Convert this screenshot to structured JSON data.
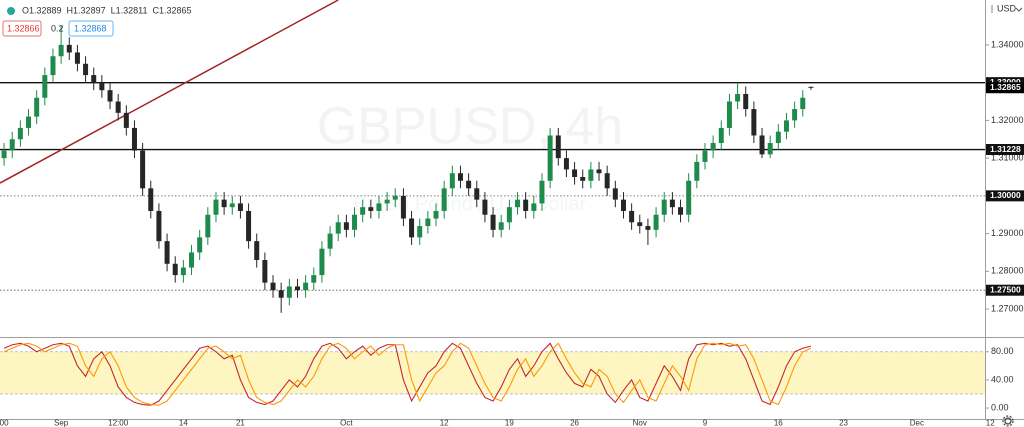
{
  "chart_data": [
    {
      "type": "candlestick",
      "watermark": "GBPUSD, 4h",
      "watermark_sub": "British Pound / U.S. Dollar",
      "currency": "USD",
      "ohlc_labels": [
        "O1.32889",
        "H1.32897",
        "L1.32811",
        "C1.32865"
      ],
      "bid": "1.32866",
      "spread": "0.2",
      "ask": "1.32868",
      "up_color": "#1e8a4c",
      "down_color": "#262626",
      "categories": [
        "00",
        null,
        null,
        null,
        null,
        null,
        null,
        "Sep",
        null,
        null,
        null,
        null,
        null,
        null,
        "12:00",
        null,
        null,
        null,
        null,
        null,
        null,
        null,
        "14",
        null,
        null,
        null,
        null,
        null,
        null,
        "21",
        null,
        null,
        null,
        null,
        null,
        null,
        null,
        null,
        null,
        null,
        null,
        null,
        "Oct",
        null,
        null,
        null,
        null,
        null,
        null,
        null,
        null,
        null,
        null,
        null,
        "12",
        null,
        null,
        null,
        null,
        null,
        null,
        null,
        "19",
        null,
        null,
        null,
        null,
        null,
        null,
        null,
        "26",
        null,
        null,
        null,
        null,
        null,
        null,
        null,
        "Nov",
        null,
        null,
        null,
        null,
        null,
        null,
        null,
        "9",
        null,
        null,
        null,
        null,
        null,
        null,
        null,
        null,
        "16",
        null,
        null,
        null,
        null,
        null,
        null,
        null,
        "23",
        null,
        null,
        null,
        null,
        null,
        null,
        null,
        null,
        "Dec",
        null,
        null,
        null,
        null,
        null,
        null,
        null,
        null,
        "12"
      ],
      "open": [
        1.31,
        1.312,
        1.315,
        1.318,
        1.321,
        1.326,
        1.332,
        1.337,
        1.34,
        1.338,
        1.335,
        1.332,
        1.33,
        1.328,
        1.325,
        1.322,
        1.318,
        1.312,
        1.302,
        1.296,
        1.288,
        1.282,
        1.279,
        1.281,
        1.285,
        1.289,
        1.295,
        1.299,
        1.297,
        1.298,
        1.296,
        1.288,
        1.283,
        1.277,
        1.275,
        1.273,
        1.276,
        1.275,
        1.277,
        1.279,
        1.286,
        1.29,
        1.293,
        1.291,
        1.295,
        1.297,
        1.296,
        1.298,
        1.299,
        1.3,
        1.294,
        1.289,
        1.292,
        1.294,
        1.296,
        1.302,
        1.306,
        1.304,
        1.302,
        1.299,
        1.295,
        1.291,
        1.293,
        1.297,
        1.299,
        1.296,
        1.298,
        1.304,
        1.316,
        1.31,
        1.307,
        1.305,
        1.304,
        1.307,
        1.306,
        1.302,
        1.299,
        1.296,
        1.293,
        1.292,
        1.291,
        1.295,
        1.299,
        1.297,
        1.295,
        1.304,
        1.309,
        1.312,
        1.314,
        1.318,
        1.325,
        1.327,
        1.323,
        1.316,
        1.311,
        1.314,
        1.317,
        1.32,
        1.323,
        1.32889,
        null,
        null,
        null,
        null,
        null,
        null,
        null,
        null,
        null,
        null,
        null,
        null,
        null,
        null,
        null,
        null,
        null,
        null,
        null,
        null,
        null,
        null
      ],
      "high": [
        1.314,
        1.317,
        1.32,
        1.323,
        1.328,
        1.334,
        1.339,
        1.345,
        1.342,
        1.34,
        1.337,
        1.334,
        1.332,
        1.33,
        1.327,
        1.324,
        1.32,
        1.314,
        1.304,
        1.298,
        1.29,
        1.284,
        1.283,
        1.287,
        1.291,
        1.297,
        1.301,
        1.301,
        1.3,
        1.3,
        1.298,
        1.29,
        1.285,
        1.279,
        1.277,
        1.278,
        1.278,
        1.279,
        1.281,
        1.288,
        1.292,
        1.295,
        1.295,
        1.297,
        1.299,
        1.299,
        1.3,
        1.301,
        1.302,
        1.302,
        1.296,
        1.294,
        1.296,
        1.298,
        1.304,
        1.308,
        1.308,
        1.306,
        1.304,
        1.301,
        1.297,
        1.295,
        1.299,
        1.301,
        1.301,
        1.3,
        1.306,
        1.318,
        1.318,
        1.312,
        1.309,
        1.307,
        1.309,
        1.309,
        1.308,
        1.304,
        1.301,
        1.298,
        1.295,
        1.294,
        1.297,
        1.301,
        1.301,
        1.299,
        1.306,
        1.311,
        1.314,
        1.316,
        1.32,
        1.327,
        1.33,
        1.329,
        1.325,
        1.318,
        1.316,
        1.319,
        1.322,
        1.325,
        1.328,
        1.32897,
        null,
        null,
        null,
        null,
        null,
        null,
        null,
        null,
        null,
        null,
        null,
        null,
        null,
        null,
        null,
        null,
        null,
        null,
        null,
        null,
        null,
        null
      ],
      "low": [
        1.308,
        1.31,
        1.313,
        1.316,
        1.319,
        1.324,
        1.33,
        1.335,
        1.336,
        1.333,
        1.33,
        1.328,
        1.326,
        1.323,
        1.32,
        1.316,
        1.31,
        1.3,
        1.294,
        1.286,
        1.28,
        1.277,
        1.277,
        1.279,
        1.283,
        1.287,
        1.293,
        1.295,
        1.295,
        1.294,
        1.286,
        1.281,
        1.275,
        1.273,
        1.269,
        1.271,
        1.273,
        1.273,
        1.275,
        1.277,
        1.284,
        1.288,
        1.289,
        1.289,
        1.293,
        1.294,
        1.294,
        1.296,
        1.297,
        1.292,
        1.287,
        1.287,
        1.29,
        1.292,
        1.294,
        1.3,
        1.302,
        1.3,
        1.297,
        1.293,
        1.289,
        1.289,
        1.291,
        1.295,
        1.294,
        1.294,
        1.296,
        1.302,
        1.308,
        1.305,
        1.303,
        1.302,
        1.302,
        1.304,
        1.3,
        1.297,
        1.294,
        1.291,
        1.29,
        1.287,
        1.289,
        1.293,
        1.295,
        1.293,
        1.293,
        1.302,
        1.307,
        1.31,
        1.312,
        1.316,
        1.323,
        1.321,
        1.314,
        1.31,
        1.31,
        1.312,
        1.315,
        1.318,
        1.321,
        1.32811,
        null,
        null,
        null,
        null,
        null,
        null,
        null,
        null,
        null,
        null,
        null,
        null,
        null,
        null,
        null,
        null,
        null,
        null,
        null,
        null,
        null,
        null
      ],
      "close": [
        1.312,
        1.315,
        1.318,
        1.321,
        1.326,
        1.332,
        1.337,
        1.34,
        1.338,
        1.335,
        1.332,
        1.33,
        1.328,
        1.325,
        1.322,
        1.318,
        1.312,
        1.302,
        1.296,
        1.288,
        1.282,
        1.279,
        1.281,
        1.285,
        1.289,
        1.295,
        1.299,
        1.297,
        1.298,
        1.296,
        1.288,
        1.283,
        1.277,
        1.275,
        1.273,
        1.276,
        1.275,
        1.277,
        1.279,
        1.286,
        1.29,
        1.293,
        1.291,
        1.295,
        1.297,
        1.296,
        1.298,
        1.299,
        1.3,
        1.294,
        1.289,
        1.292,
        1.294,
        1.296,
        1.302,
        1.306,
        1.304,
        1.302,
        1.299,
        1.295,
        1.291,
        1.293,
        1.297,
        1.299,
        1.296,
        1.298,
        1.304,
        1.316,
        1.31,
        1.307,
        1.305,
        1.304,
        1.307,
        1.306,
        1.302,
        1.299,
        1.296,
        1.293,
        1.292,
        1.291,
        1.295,
        1.299,
        1.297,
        1.295,
        1.304,
        1.309,
        1.312,
        1.314,
        1.318,
        1.325,
        1.327,
        1.323,
        1.316,
        1.311,
        1.314,
        1.317,
        1.32,
        1.323,
        1.326,
        1.32865,
        null,
        null,
        null,
        null,
        null,
        null,
        null,
        null,
        null,
        null,
        null,
        null,
        null,
        null,
        null,
        null,
        null,
        null,
        null,
        null,
        null,
        null
      ],
      "ylim": [
        1.2626,
        1.3519
      ],
      "yticks": [
        {
          "value": 1.34,
          "label": "1.34000"
        },
        {
          "value": 1.32,
          "label": "1.32000"
        },
        {
          "value": 1.31,
          "label": "1.31000"
        },
        {
          "value": 1.29,
          "label": "1.29000"
        },
        {
          "value": 1.28,
          "label": "1.28000"
        },
        {
          "value": 1.27,
          "label": "1.27000"
        }
      ],
      "levels": [
        {
          "value": 1.33,
          "label": "1.33000",
          "style": "solid"
        },
        {
          "value": 1.31228,
          "label": "1.31228",
          "style": "solid"
        },
        {
          "value": 1.3,
          "label": "1.30000",
          "style": "dotted"
        },
        {
          "value": 1.275,
          "label": "1.27500",
          "style": "dotted"
        }
      ],
      "trendline": {
        "color": "#a32424",
        "from": [
          -0.5,
          1.3034
        ],
        "to": [
          41,
          1.3519
        ]
      }
    },
    {
      "type": "line",
      "ylim": [
        -17,
        101
      ],
      "yticks": [
        {
          "value": 80,
          "label": "80.00"
        },
        {
          "value": 40,
          "label": "40.00"
        },
        {
          "value": 0,
          "label": "0.00"
        }
      ],
      "band": [
        20,
        80
      ],
      "band_color": "#fdf6c3",
      "series": [
        {
          "color": "#c62828",
          "values": [
            85,
            90,
            92,
            88,
            80,
            85,
            90,
            92,
            88,
            60,
            45,
            70,
            80,
            60,
            30,
            15,
            8,
            5,
            4,
            10,
            25,
            40,
            55,
            70,
            85,
            88,
            80,
            70,
            75,
            40,
            15,
            8,
            5,
            10,
            25,
            40,
            30,
            45,
            70,
            88,
            92,
            85,
            70,
            80,
            88,
            75,
            85,
            90,
            90,
            40,
            10,
            30,
            50,
            60,
            80,
            92,
            85,
            60,
            35,
            15,
            10,
            30,
            55,
            70,
            45,
            60,
            80,
            92,
            70,
            50,
            35,
            30,
            55,
            45,
            20,
            8,
            25,
            40,
            15,
            10,
            35,
            60,
            45,
            25,
            70,
            90,
            92,
            90,
            92,
            88,
            90,
            70,
            40,
            10,
            5,
            30,
            60,
            80,
            85,
            88,
            null,
            null,
            null,
            null,
            null,
            null,
            null,
            null,
            null,
            null,
            null,
            null,
            null,
            null,
            null,
            null,
            null,
            null,
            null,
            null,
            null,
            null
          ]
        },
        {
          "color": "#ff9800",
          "values": [
            80,
            85,
            90,
            92,
            88,
            80,
            85,
            90,
            92,
            88,
            60,
            45,
            70,
            80,
            60,
            30,
            15,
            8,
            5,
            4,
            10,
            25,
            40,
            55,
            70,
            85,
            88,
            80,
            70,
            75,
            40,
            15,
            8,
            5,
            10,
            25,
            40,
            30,
            45,
            70,
            88,
            92,
            85,
            70,
            80,
            88,
            75,
            85,
            90,
            90,
            40,
            10,
            30,
            50,
            60,
            80,
            92,
            85,
            60,
            35,
            15,
            10,
            30,
            55,
            70,
            45,
            60,
            80,
            92,
            70,
            50,
            35,
            30,
            55,
            45,
            20,
            8,
            25,
            40,
            15,
            10,
            35,
            60,
            45,
            25,
            70,
            90,
            92,
            90,
            92,
            88,
            90,
            70,
            40,
            10,
            5,
            30,
            60,
            80,
            85,
            null,
            null,
            null,
            null,
            null,
            null,
            null,
            null,
            null,
            null,
            null,
            null,
            null,
            null,
            null,
            null,
            null,
            null,
            null,
            null,
            null,
            null
          ]
        }
      ]
    }
  ]
}
